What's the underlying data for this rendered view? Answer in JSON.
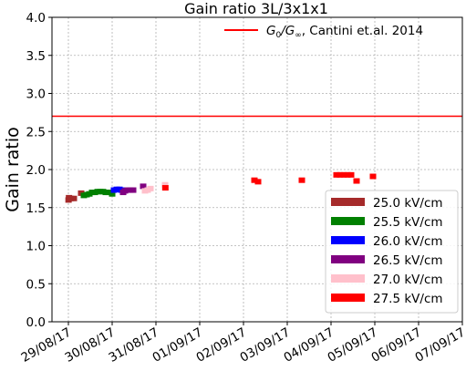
{
  "chart_data": {
    "type": "scatter",
    "title": "Gain ratio 3L/3x1x1",
    "xlabel": "",
    "ylabel": "Gain ratio",
    "xlim": [
      "2017-08-28T15:00",
      "2017-09-07T00:00"
    ],
    "ylim": [
      0.0,
      4.0
    ],
    "yticks": [
      "0.0",
      "0.5",
      "1.0",
      "1.5",
      "2.0",
      "2.5",
      "3.0",
      "3.5",
      "4.0"
    ],
    "xticks": [
      {
        "date": "2017-08-29",
        "label": "29/08/17"
      },
      {
        "date": "2017-08-30",
        "label": "30/08/17"
      },
      {
        "date": "2017-08-31",
        "label": "31/08/17"
      },
      {
        "date": "2017-09-01",
        "label": "01/09/17"
      },
      {
        "date": "2017-09-02",
        "label": "02/09/17"
      },
      {
        "date": "2017-09-03",
        "label": "03/09/17"
      },
      {
        "date": "2017-09-04",
        "label": "04/09/17"
      },
      {
        "date": "2017-09-05",
        "label": "05/09/17"
      },
      {
        "date": "2017-09-06",
        "label": "06/09/17"
      },
      {
        "date": "2017-09-07",
        "label": "07/09/17"
      }
    ],
    "grid": true,
    "legend_position": "lower-right",
    "reference_line": {
      "y": 2.7,
      "label_main": "G",
      "label_sub0": "0",
      "label_slash": "/G",
      "label_subinf": "∞",
      "label_rest": ", Cantini et.al. 2014",
      "color": "#ff0000"
    },
    "series": [
      {
        "name": "25.0 kV/cm",
        "color": "#a52a2a",
        "points": [
          {
            "x": "2017-08-29T00:05",
            "y": 1.6
          },
          {
            "x": "2017-08-29T00:20",
            "y": 1.63
          },
          {
            "x": "2017-08-29T01:30",
            "y": 1.62
          },
          {
            "x": "2017-08-29T03:00",
            "y": 1.62
          },
          {
            "x": "2017-08-29T07:00",
            "y": 1.69
          }
        ]
      },
      {
        "name": "25.5 kV/cm",
        "color": "#008000",
        "points": [
          {
            "x": "2017-08-29T08:30",
            "y": 1.66
          },
          {
            "x": "2017-08-29T10:00",
            "y": 1.67
          },
          {
            "x": "2017-08-29T11:30",
            "y": 1.68
          },
          {
            "x": "2017-08-29T13:00",
            "y": 1.7
          },
          {
            "x": "2017-08-29T14:30",
            "y": 1.7
          },
          {
            "x": "2017-08-29T16:00",
            "y": 1.71
          },
          {
            "x": "2017-08-29T17:30",
            "y": 1.71
          },
          {
            "x": "2017-08-29T19:00",
            "y": 1.71
          },
          {
            "x": "2017-08-29T20:30",
            "y": 1.7
          },
          {
            "x": "2017-08-29T22:00",
            "y": 1.7
          },
          {
            "x": "2017-08-30T00:00",
            "y": 1.68
          }
        ]
      },
      {
        "name": "26.0 kV/cm",
        "color": "#0000ff",
        "points": [
          {
            "x": "2017-08-30T01:00",
            "y": 1.73
          },
          {
            "x": "2017-08-30T02:30",
            "y": 1.74
          },
          {
            "x": "2017-08-30T04:00",
            "y": 1.74
          },
          {
            "x": "2017-08-30T05:00",
            "y": 1.73
          }
        ]
      },
      {
        "name": "26.5 kV/cm",
        "color": "#800080",
        "points": [
          {
            "x": "2017-08-30T06:00",
            "y": 1.7
          },
          {
            "x": "2017-08-30T07:00",
            "y": 1.72
          },
          {
            "x": "2017-08-30T08:30",
            "y": 1.73
          },
          {
            "x": "2017-08-30T10:00",
            "y": 1.73
          },
          {
            "x": "2017-08-30T11:30",
            "y": 1.73
          },
          {
            "x": "2017-08-30T17:00",
            "y": 1.78
          }
        ]
      },
      {
        "name": "27.0 kV/cm",
        "color": "#ffc0cb",
        "points": [
          {
            "x": "2017-08-30T18:00",
            "y": 1.72
          },
          {
            "x": "2017-08-30T19:30",
            "y": 1.73
          },
          {
            "x": "2017-08-30T21:00",
            "y": 1.75
          },
          {
            "x": "2017-08-31T05:00",
            "y": 1.8
          }
        ]
      },
      {
        "name": "27.5 kV/cm",
        "color": "#ff0000",
        "points": [
          {
            "x": "2017-08-31T05:10",
            "y": 1.76
          },
          {
            "x": "2017-09-02T06:00",
            "y": 1.86
          },
          {
            "x": "2017-09-02T08:00",
            "y": 1.84
          },
          {
            "x": "2017-09-03T08:00",
            "y": 1.86
          },
          {
            "x": "2017-09-04T03:00",
            "y": 1.93
          },
          {
            "x": "2017-09-04T05:00",
            "y": 1.93
          },
          {
            "x": "2017-09-04T07:00",
            "y": 1.93
          },
          {
            "x": "2017-09-04T09:00",
            "y": 1.93
          },
          {
            "x": "2017-09-04T11:00",
            "y": 1.93
          },
          {
            "x": "2017-09-04T14:00",
            "y": 1.85
          },
          {
            "x": "2017-09-04T23:00",
            "y": 1.91
          }
        ]
      }
    ]
  }
}
